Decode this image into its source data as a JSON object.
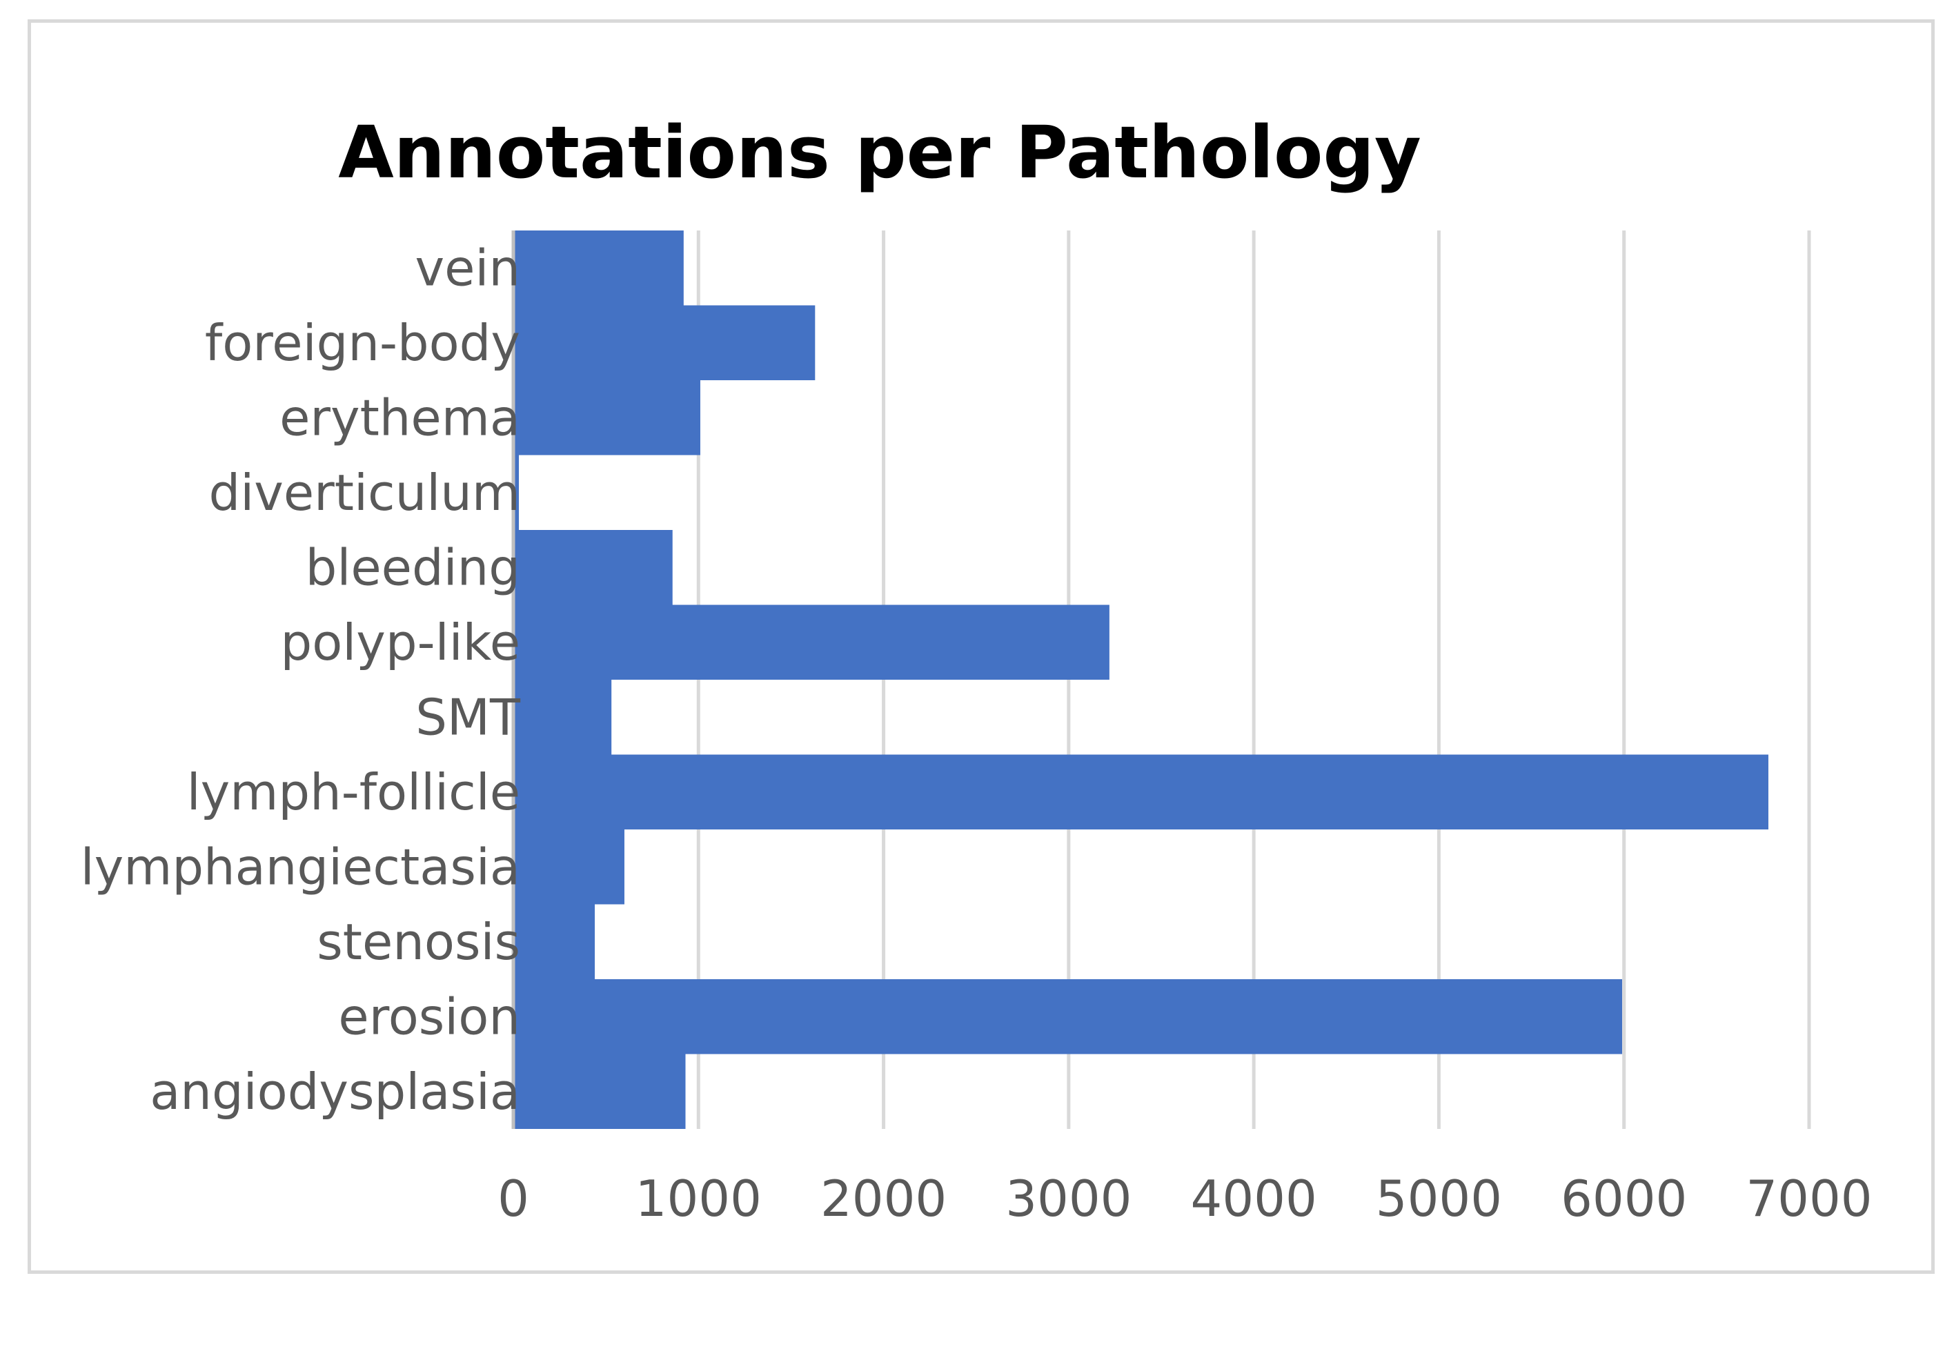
{
  "chart_data": {
    "type": "bar",
    "orientation": "horizontal",
    "title": "Annotations per Pathology",
    "xlabel": "",
    "ylabel": "",
    "categories": [
      "vein",
      "foreign-body",
      "erythema",
      "diverticulum",
      "bleeding",
      "polyp-like",
      "SMT",
      "lymph-follicle",
      "lymphangiectasia",
      "stenosis",
      "erosion",
      "angiodysplasia"
    ],
    "values": [
      920,
      1630,
      1010,
      30,
      860,
      3220,
      530,
      6780,
      600,
      440,
      5990,
      930
    ],
    "xlim": [
      0,
      7000
    ],
    "xticks": [
      0,
      1000,
      2000,
      3000,
      4000,
      5000,
      6000,
      7000
    ],
    "grid": "vertical",
    "legend": "none",
    "colors": {
      "bar": "#4472c4",
      "grid": "#d9d9d9",
      "text": "#595959",
      "frame": "#d9d9d9"
    }
  }
}
